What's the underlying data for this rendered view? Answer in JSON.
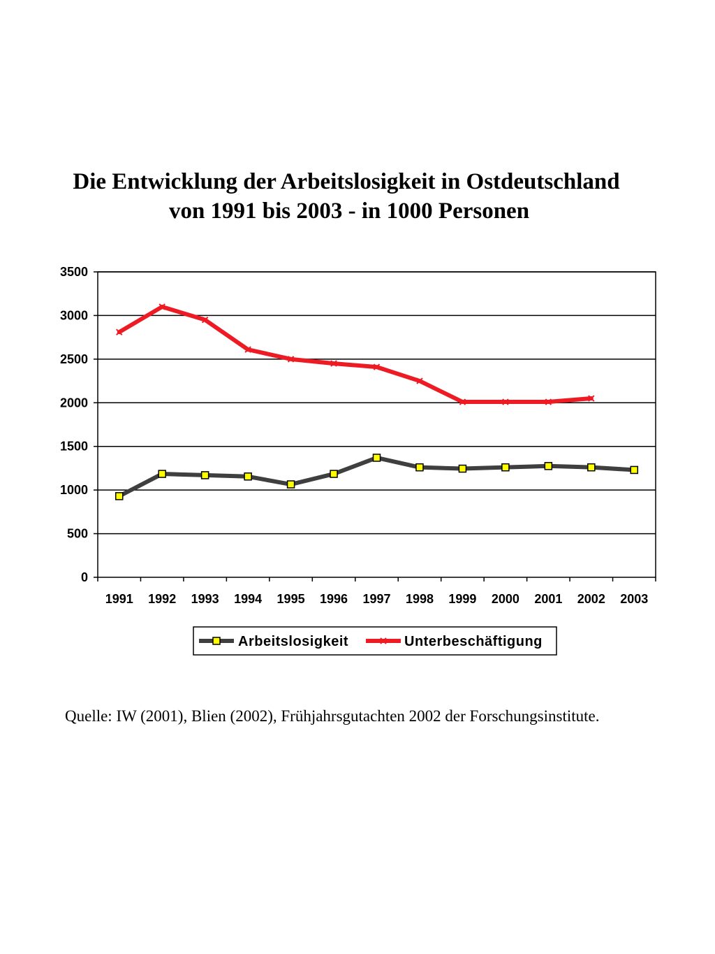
{
  "chart_data": {
    "type": "line",
    "title_lines": [
      "Die Entwicklung der Arbeitslosigkeit in Ostdeutschland",
      "von 1991 bis 2003 - in 1000 Personen"
    ],
    "categories": [
      "1991",
      "1992",
      "1993",
      "1994",
      "1995",
      "1996",
      "1997",
      "1998",
      "1999",
      "2000",
      "2001",
      "2002",
      "2003"
    ],
    "ylim": [
      0,
      3500
    ],
    "yticks": [
      "0",
      "500",
      "1000",
      "1500",
      "2000",
      "2500",
      "3000",
      "3500"
    ],
    "grid": true,
    "legend_position": "bottom",
    "series": [
      {
        "name": "Arbeitslosigkeit",
        "values": [
          930,
          1185,
          1170,
          1155,
          1065,
          1185,
          1370,
          1260,
          1245,
          1260,
          1275,
          1260,
          1230
        ],
        "color": "#3f3f3f",
        "marker": "square",
        "marker_color": "#ffff00"
      },
      {
        "name": "Unterbeschäftigung",
        "values": [
          2810,
          3100,
          2950,
          2610,
          2500,
          2450,
          2410,
          2250,
          2010,
          2010,
          2010,
          2050,
          null
        ],
        "color": "#ec1b24",
        "marker": "x"
      }
    ]
  },
  "source_text": "Quelle: IW (2001), Blien (2002), Frühjahrsgutachten 2002 der Forschungsinstitute."
}
